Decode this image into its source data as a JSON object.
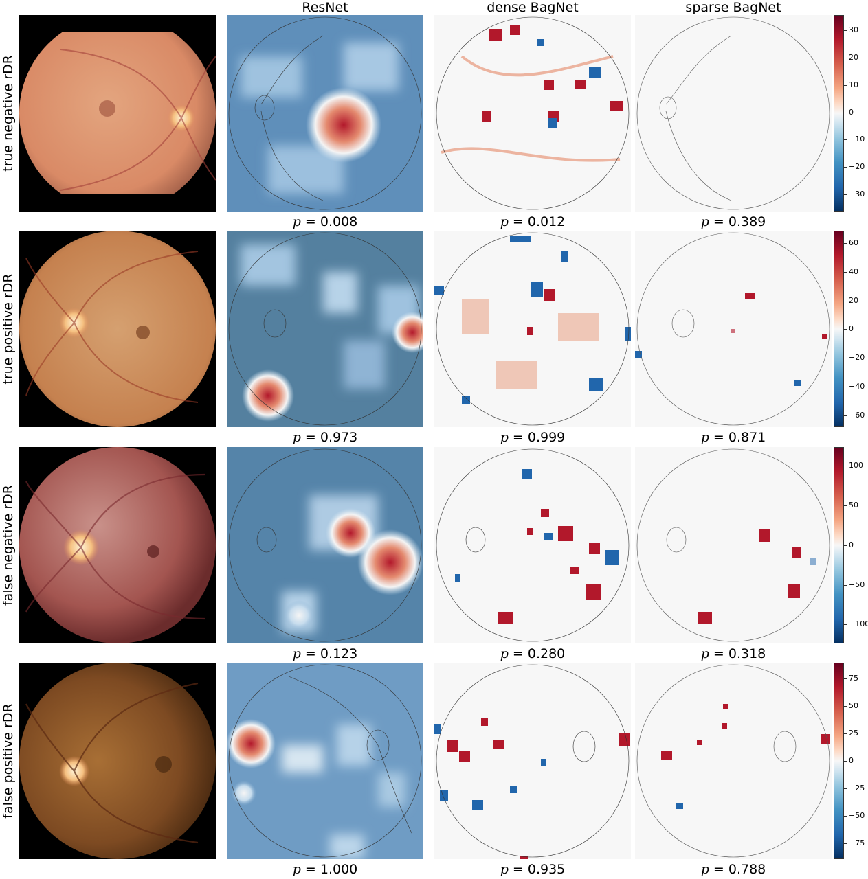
{
  "columns": [
    "",
    "ResNet",
    "dense BagNet",
    "sparse BagNet"
  ],
  "rows": [
    {
      "label": "true negative rDR",
      "p_values": {
        "resnet": "0.008",
        "dense": "0.012",
        "sparse": "0.389"
      },
      "colorbar_ticks": [
        "30",
        "20",
        "10",
        "0",
        "−10",
        "−20",
        "−30"
      ]
    },
    {
      "label": "true positive rDR",
      "p_values": {
        "resnet": "0.973",
        "dense": "0.999",
        "sparse": "0.871"
      },
      "colorbar_ticks": [
        "60",
        "40",
        "20",
        "0",
        "−20",
        "−40",
        "−60"
      ]
    },
    {
      "label": "false negative rDR",
      "p_values": {
        "resnet": "0.123",
        "dense": "0.280",
        "sparse": "0.318"
      },
      "colorbar_ticks": [
        "100",
        "50",
        "0",
        "−50",
        "−100"
      ]
    },
    {
      "label": "false positive rDR",
      "p_values": {
        "resnet": "1.000",
        "dense": "0.935",
        "sparse": "0.788"
      },
      "colorbar_ticks": [
        "75",
        "50",
        "25",
        "0",
        "−25",
        "−50",
        "−75"
      ]
    }
  ],
  "p_prefix": "p = ",
  "colors": {
    "positive": "#b2182b",
    "negative": "#2166ac",
    "neutral": "#f7f7f7"
  }
}
